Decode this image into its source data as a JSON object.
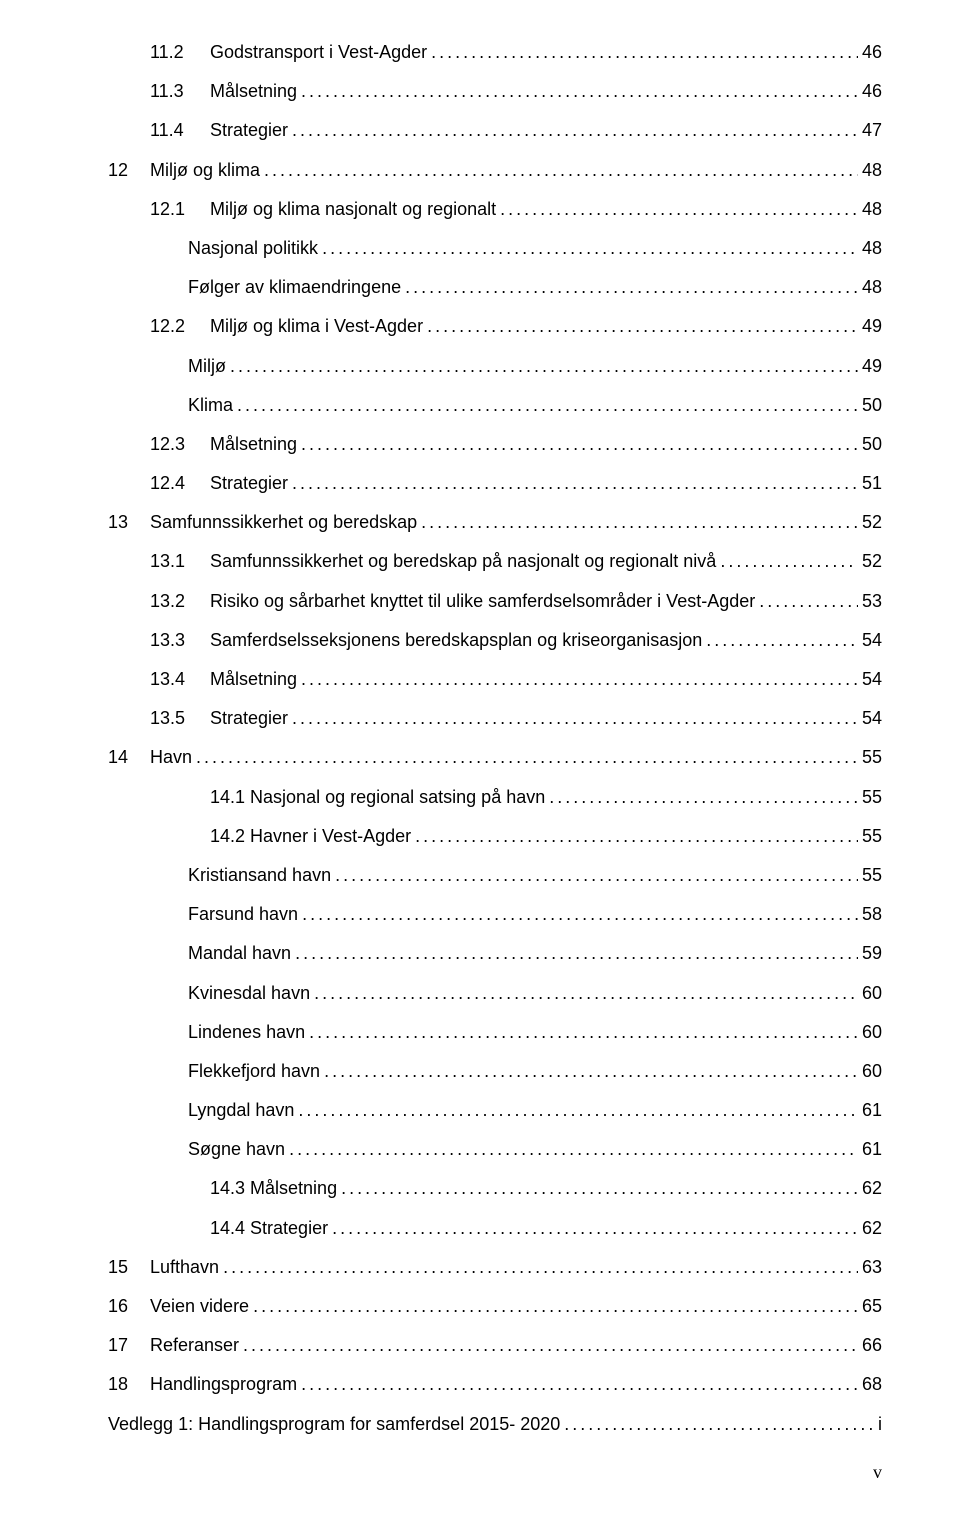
{
  "footer": "v",
  "entries": [
    {
      "indent": 1,
      "num": "11.2",
      "title": "Godstransport i Vest-Agder",
      "page": "46"
    },
    {
      "indent": 1,
      "num": "11.3",
      "title": "Målsetning",
      "page": "46"
    },
    {
      "indent": 1,
      "num": "11.4",
      "title": "Strategier",
      "page": "47"
    },
    {
      "indent": 0,
      "num": "12",
      "title": "Miljø og klima",
      "page": "48"
    },
    {
      "indent": 1,
      "num": "12.1",
      "title": "Miljø og klima nasjonalt og regionalt",
      "page": "48"
    },
    {
      "indent": 2,
      "num": "",
      "title": "Nasjonal politikk",
      "page": "48"
    },
    {
      "indent": 2,
      "num": "",
      "title": "Følger av klimaendringene",
      "page": "48"
    },
    {
      "indent": 1,
      "num": "12.2",
      "title": "Miljø og klima i Vest-Agder",
      "page": "49"
    },
    {
      "indent": 2,
      "num": "",
      "title": "Miljø",
      "page": "49"
    },
    {
      "indent": 2,
      "num": "",
      "title": "Klima",
      "page": "50"
    },
    {
      "indent": 1,
      "num": "12.3",
      "title": "Målsetning",
      "page": "50"
    },
    {
      "indent": 1,
      "num": "12.4",
      "title": "Strategier",
      "page": "51"
    },
    {
      "indent": 0,
      "num": "13",
      "title": "Samfunnssikkerhet og beredskap",
      "page": "52"
    },
    {
      "indent": 1,
      "num": "13.1",
      "title": "Samfunnssikkerhet og beredskap på nasjonalt og regionalt nivå",
      "page": "52"
    },
    {
      "indent": 1,
      "num": "13.2",
      "title": "Risiko og sårbarhet knyttet til ulike samferdselsområder i Vest-Agder",
      "page": "53"
    },
    {
      "indent": 1,
      "num": "13.3",
      "title": "Samferdselsseksjonens beredskapsplan og kriseorganisasjon",
      "page": "54"
    },
    {
      "indent": 1,
      "num": "13.4",
      "title": "Målsetning",
      "page": "54"
    },
    {
      "indent": 1,
      "num": "13.5",
      "title": "Strategier",
      "page": "54"
    },
    {
      "indent": 0,
      "num": "14",
      "title": "Havn",
      "page": "55"
    },
    {
      "indent": 1,
      "num": "",
      "title": "14.1 Nasjonal og regional satsing på havn",
      "page": "55"
    },
    {
      "indent": 1,
      "num": "",
      "title": "14.2 Havner i Vest-Agder",
      "page": "55"
    },
    {
      "indent": 2,
      "num": "",
      "title": "Kristiansand havn",
      "page": "55"
    },
    {
      "indent": 2,
      "num": "",
      "title": "Farsund havn",
      "page": "58"
    },
    {
      "indent": 2,
      "num": "",
      "title": "Mandal havn",
      "page": "59"
    },
    {
      "indent": 2,
      "num": "",
      "title": "Kvinesdal havn",
      "page": "60"
    },
    {
      "indent": 2,
      "num": "",
      "title": "Lindenes havn",
      "page": "60"
    },
    {
      "indent": 2,
      "num": "",
      "title": "Flekkefjord havn",
      "page": "60"
    },
    {
      "indent": 2,
      "num": "",
      "title": "Lyngdal havn",
      "page": "61"
    },
    {
      "indent": 2,
      "num": "",
      "title": "Søgne havn",
      "page": "61"
    },
    {
      "indent": 1,
      "num": "",
      "title": "14.3 Målsetning",
      "page": "62"
    },
    {
      "indent": 1,
      "num": "",
      "title": "14.4 Strategier",
      "page": "62"
    },
    {
      "indent": 0,
      "num": "15",
      "title": "Lufthavn",
      "page": "63"
    },
    {
      "indent": 0,
      "num": "16",
      "title": "Veien videre",
      "page": "65"
    },
    {
      "indent": 0,
      "num": "17",
      "title": "Referanser",
      "page": "66"
    },
    {
      "indent": 0,
      "num": "18",
      "title": "Handlingsprogram",
      "page": "68"
    },
    {
      "indent": 0,
      "num": "",
      "title": "Vedlegg 1: Handlingsprogram for samferdsel 2015- 2020",
      "page": "i",
      "noNumCol": true
    }
  ]
}
